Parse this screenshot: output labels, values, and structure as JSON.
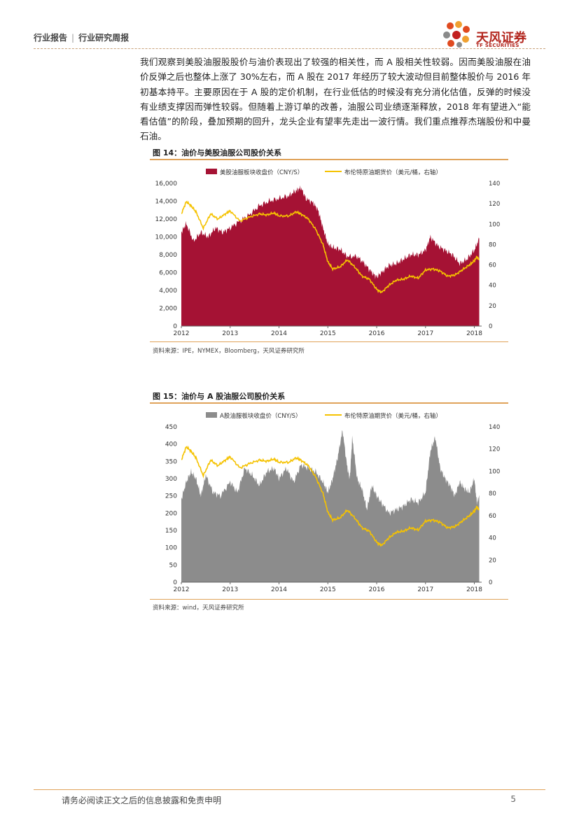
{
  "header": {
    "category": "行业报告",
    "separator": "|",
    "type": "行业研究周报"
  },
  "logo": {
    "name": "天风证券",
    "sub": "TF SECURITIES"
  },
  "paragraph": "我们观察到美股油服股股价与油价表现出了较强的相关性，而 A 股相关性较弱。因而美股油服在油价反弹之后也整体上涨了 30%左右，而 A 股在 2017 年经历了较大波动但目前整体股价与 2016 年初基本持平。主要原因在于 A 股的定价机制，在行业低估的时候没有充分消化估值，反弹的时候没有业绩支撑因而弹性较弱。但随着上游订单的改善，油服公司业绩逐渐释放，2018 年有望进入“能看估值”的阶段，叠加预期的回升，龙头企业有望率先走出一波行情。我们重点推荐杰瑞股份和中曼石油。",
  "figures": [
    {
      "title": "图 14：油价与美股油服公司股价关系",
      "source": "资料来源：IPE，NYMEX，Bloomberg，天风证券研究所"
    },
    {
      "title": "图 15：油价与 A 股油服公司股价关系",
      "source": "资料来源：wind，天风证券研究所"
    }
  ],
  "chart_data": [
    {
      "type": "area",
      "title": "图 14：油价与美股油服公司股价关系",
      "x_labels": [
        "2012",
        "2013",
        "2014",
        "2015",
        "2016",
        "2017",
        "2018"
      ],
      "series": [
        {
          "name": "美股油服板块收盘价（CNY/S）",
          "axis": "left",
          "kind": "area",
          "color": "#a51234",
          "x": [
            2012.0,
            2012.1,
            2012.25,
            2012.4,
            2012.55,
            2012.7,
            2012.85,
            2013.0,
            2013.2,
            2013.4,
            2013.6,
            2013.8,
            2014.0,
            2014.2,
            2014.35,
            2014.45,
            2014.55,
            2014.7,
            2014.8,
            2014.9,
            2015.0,
            2015.1,
            2015.25,
            2015.4,
            2015.6,
            2015.75,
            2015.9,
            2016.0,
            2016.1,
            2016.25,
            2016.4,
            2016.55,
            2016.7,
            2016.85,
            2017.0,
            2017.1,
            2017.25,
            2017.4,
            2017.55,
            2017.7,
            2017.85,
            2018.0,
            2018.1
          ],
          "values": [
            10500,
            11500,
            9500,
            10500,
            10000,
            11000,
            10500,
            11000,
            11800,
            12500,
            13500,
            14000,
            14300,
            14600,
            15200,
            15500,
            14300,
            13800,
            13000,
            11000,
            9200,
            8800,
            8600,
            7800,
            7800,
            7000,
            6000,
            5500,
            6000,
            6800,
            7000,
            7500,
            8000,
            8000,
            8500,
            10000,
            9000,
            8500,
            8000,
            7000,
            7500,
            8500,
            9800
          ]
        },
        {
          "name": "布伦特原油期货价（美元/桶，右轴）",
          "axis": "right",
          "kind": "line",
          "color": "#f5c200",
          "x": [
            2012.0,
            2012.1,
            2012.2,
            2012.3,
            2012.45,
            2012.6,
            2012.75,
            2012.9,
            2013.0,
            2013.2,
            2013.4,
            2013.6,
            2013.75,
            2013.9,
            2014.0,
            2014.2,
            2014.35,
            2014.45,
            2014.6,
            2014.75,
            2014.9,
            2015.0,
            2015.1,
            2015.25,
            2015.4,
            2015.55,
            2015.7,
            2015.85,
            2016.0,
            2016.1,
            2016.25,
            2016.4,
            2016.55,
            2016.7,
            2016.85,
            2017.0,
            2017.15,
            2017.3,
            2017.45,
            2017.6,
            2017.75,
            2017.9,
            2018.0,
            2018.05,
            2018.1
          ],
          "values": [
            110,
            122,
            118,
            112,
            96,
            110,
            105,
            110,
            113,
            103,
            107,
            110,
            109,
            111,
            108,
            108,
            112,
            110,
            105,
            95,
            80,
            63,
            56,
            58,
            65,
            58,
            49,
            46,
            36,
            33,
            40,
            45,
            46,
            49,
            47,
            55,
            56,
            54,
            49,
            50,
            55,
            60,
            64,
            68,
            65
          ]
        }
      ],
      "ylim_left": [
        0,
        16000
      ],
      "yticks_left": [
        "0",
        "2,000",
        "4,000",
        "6,000",
        "8,000",
        "10,000",
        "12,000",
        "14,000",
        "16,000"
      ],
      "ylim_right": [
        0,
        140
      ],
      "yticks_right": [
        "0",
        "20",
        "40",
        "60",
        "80",
        "100",
        "120",
        "140"
      ],
      "legend": "top"
    },
    {
      "type": "area",
      "title": "图 15：油价与 A 股油服公司股价关系",
      "x_labels": [
        "2012",
        "2013",
        "2014",
        "2015",
        "2016",
        "2017",
        "2018"
      ],
      "series": [
        {
          "name": "A股油服板块收盘价（CNY/S）",
          "axis": "left",
          "kind": "area",
          "color": "#8c8c8c",
          "x": [
            2012.0,
            2012.1,
            2012.2,
            2012.3,
            2012.4,
            2012.5,
            2012.65,
            2012.8,
            2013.0,
            2013.15,
            2013.3,
            2013.45,
            2013.6,
            2013.75,
            2013.9,
            2014.0,
            2014.15,
            2014.3,
            2014.45,
            2014.6,
            2014.75,
            2014.9,
            2015.0,
            2015.1,
            2015.2,
            2015.3,
            2015.4,
            2015.45,
            2015.5,
            2015.6,
            2015.7,
            2015.8,
            2015.9,
            2016.0,
            2016.1,
            2016.25,
            2016.4,
            2016.55,
            2016.7,
            2016.85,
            2017.0,
            2017.1,
            2017.2,
            2017.3,
            2017.4,
            2017.5,
            2017.6,
            2017.7,
            2017.8,
            2017.9,
            2018.0,
            2018.05,
            2018.1
          ],
          "values": [
            240,
            290,
            320,
            300,
            250,
            310,
            260,
            250,
            290,
            260,
            330,
            310,
            280,
            320,
            330,
            300,
            330,
            290,
            340,
            330,
            320,
            290,
            260,
            300,
            360,
            440,
            330,
            300,
            420,
            300,
            270,
            210,
            280,
            250,
            230,
            200,
            210,
            220,
            240,
            230,
            260,
            380,
            420,
            330,
            300,
            280,
            250,
            290,
            270,
            260,
            300,
            230,
            250
          ]
        },
        {
          "name": "布伦特原油期货价（美元/桶，右轴）",
          "axis": "right",
          "kind": "line",
          "color": "#f5c200",
          "x": [
            2012.0,
            2012.1,
            2012.2,
            2012.3,
            2012.45,
            2012.6,
            2012.75,
            2012.9,
            2013.0,
            2013.2,
            2013.4,
            2013.6,
            2013.75,
            2013.9,
            2014.0,
            2014.2,
            2014.35,
            2014.45,
            2014.6,
            2014.75,
            2014.9,
            2015.0,
            2015.1,
            2015.25,
            2015.4,
            2015.55,
            2015.7,
            2015.85,
            2016.0,
            2016.1,
            2016.25,
            2016.4,
            2016.55,
            2016.7,
            2016.85,
            2017.0,
            2017.15,
            2017.3,
            2017.45,
            2017.6,
            2017.75,
            2017.9,
            2018.0,
            2018.05,
            2018.1
          ],
          "values": [
            110,
            122,
            118,
            112,
            96,
            110,
            105,
            110,
            113,
            103,
            107,
            110,
            109,
            111,
            108,
            108,
            112,
            110,
            105,
            95,
            80,
            63,
            56,
            58,
            65,
            58,
            49,
            46,
            36,
            33,
            40,
            45,
            46,
            49,
            47,
            55,
            56,
            54,
            49,
            50,
            55,
            60,
            64,
            68,
            65
          ]
        }
      ],
      "ylim_left": [
        0,
        450
      ],
      "yticks_left": [
        "0",
        "50",
        "100",
        "150",
        "200",
        "250",
        "300",
        "350",
        "400",
        "450"
      ],
      "ylim_right": [
        0,
        140
      ],
      "yticks_right": [
        "0",
        "20",
        "40",
        "60",
        "80",
        "100",
        "120",
        "140"
      ],
      "legend": "top"
    }
  ],
  "footer": {
    "disclaimer": "请务必阅读正文之后的信息披露和免责申明",
    "page": "5"
  },
  "colors": {
    "accent": "#e0a35a",
    "brand": "#b3261e"
  }
}
